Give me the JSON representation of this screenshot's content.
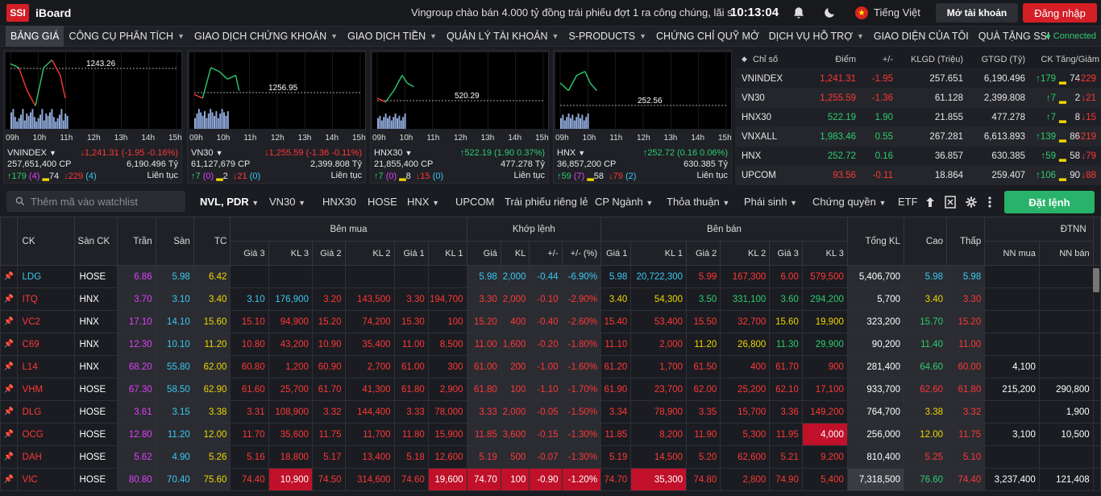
{
  "app": {
    "logo": "SSI",
    "name": "iBoard",
    "news": "Vingroup chào bán 4.000 tỷ đồng trái phiếu đợt 1 ra công chúng, lãi s",
    "time": "10:13:04",
    "language": "Tiếng Việt",
    "open_account": "Mở tài khoản",
    "login": "Đăng nhập",
    "flag_star": "★"
  },
  "menu": [
    {
      "label": "BẢNG GIÁ",
      "dropdown": false
    },
    {
      "label": "CÔNG CỤ PHÂN TÍCH",
      "dropdown": true
    },
    {
      "label": "GIAO DỊCH CHỨNG KHOÁN",
      "dropdown": true
    },
    {
      "label": "GIAO DỊCH TIỀN",
      "dropdown": true
    },
    {
      "label": "QUẢN LÝ TÀI KHOẢN",
      "dropdown": true
    },
    {
      "label": "S-PRODUCTS",
      "dropdown": true
    },
    {
      "label": "CHỨNG CHỈ QUỸ MỞ",
      "dropdown": false
    },
    {
      "label": "DỊCH VỤ HỖ TRỢ",
      "dropdown": true
    },
    {
      "label": "GIAO DIỆN CỦA TÔI",
      "dropdown": false
    },
    {
      "label": "QUÀ TẶNG SSI",
      "dropdown": false
    }
  ],
  "status": "● Connected",
  "charts": [
    {
      "name": "VNINDEX",
      "change": "↓1,241.31 (-1.95 -0.16%)",
      "dir": "dn",
      "vol": "257,651,400 CP",
      "val": "6,190.496 Tỷ",
      "up": "↑179",
      "upn": "(4)",
      "ref": "74",
      "down": "↓229",
      "downn": "(4)",
      "status": "Liên tục",
      "label": "1243.26",
      "hours": [
        "09h",
        "10h",
        "11h",
        "12h",
        "13h",
        "14h",
        "15h"
      ],
      "ref_level": 1243.26
    },
    {
      "name": "VN30",
      "change": "↓1,255.59 (-1.36 -0.11%)",
      "dir": "dn",
      "vol": "61,127,679 CP",
      "val": "2,399.808 Tỷ",
      "up": "↑7",
      "upn": "(0)",
      "ref": "2",
      "down": "↓21",
      "downn": "(0)",
      "status": "Liên tục",
      "label": "1256.95",
      "hours": [
        "09h",
        "10h",
        "11h",
        "12h",
        "13h",
        "14h",
        "15h"
      ],
      "ref_level": 1256.95
    },
    {
      "name": "HNX30",
      "change": "↑522.19 (1.90 0.37%)",
      "dir": "up",
      "vol": "21,855,400 CP",
      "val": "477.278 Tỷ",
      "up": "↑7",
      "upn": "(0)",
      "ref": "8",
      "down": "↓15",
      "downn": "(0)",
      "status": "Liên tục",
      "label": "520.29",
      "hours": [
        "09h",
        "10h",
        "11h",
        "12h",
        "13h",
        "14h",
        "15h"
      ],
      "ref_level": 520.29
    },
    {
      "name": "HNX",
      "change": "↑252.72 (0.16 0.06%)",
      "dir": "up",
      "vol": "36,857,200 CP",
      "val": "630.385 Tỷ",
      "up": "↑59",
      "upn": "(7)",
      "ref": "58",
      "down": "↓79",
      "downn": "(2)",
      "status": "Liên tục",
      "label": "252.56",
      "hours": [
        "09h",
        "10h",
        "11h",
        "12h",
        "13h",
        "14h",
        "15h"
      ],
      "ref_level": 252.56
    }
  ],
  "index_table": {
    "headers": [
      "Chỉ số",
      "Điểm",
      "+/-",
      "KLGD (Triệu)",
      "GTGD (Tỷ)",
      "CK Tăng/Giảm"
    ],
    "rows": [
      {
        "name": "VNINDEX",
        "point": "1,241.31",
        "chg": "-1.95",
        "klgd": "257.651",
        "gtgd": "6,190.496",
        "up": "↑179",
        "ref": "74",
        "down": "↓229",
        "dir": "dn"
      },
      {
        "name": "VN30",
        "point": "1,255.59",
        "chg": "-1.36",
        "klgd": "61.128",
        "gtgd": "2,399.808",
        "up": "↑7",
        "ref": "2",
        "down": "↓21",
        "dir": "dn"
      },
      {
        "name": "HNX30",
        "point": "522.19",
        "chg": "1.90",
        "klgd": "21.855",
        "gtgd": "477.278",
        "up": "↑7",
        "ref": "8",
        "down": "↓15",
        "dir": "up"
      },
      {
        "name": "VNXALL",
        "point": "1,983.46",
        "chg": "0.55",
        "klgd": "267.281",
        "gtgd": "6,613.893",
        "up": "↑139",
        "ref": "86",
        "down": "↓219",
        "dir": "up"
      },
      {
        "name": "HNX",
        "point": "252.72",
        "chg": "0.16",
        "klgd": "36.857",
        "gtgd": "630.385",
        "up": "↑59",
        "ref": "58",
        "down": "↓79",
        "dir": "up"
      },
      {
        "name": "UPCOM",
        "point": "93.56",
        "chg": "-0.11",
        "klgd": "18.864",
        "gtgd": "259.407",
        "up": "↑106",
        "ref": "90",
        "down": "↓88",
        "dir": "dn"
      }
    ]
  },
  "toolbar": {
    "search_placeholder": "Thêm mã vào watchlist",
    "tabs": [
      {
        "label": "NVL, PDR",
        "dropdown": true
      },
      {
        "label": "VN30",
        "dropdown": true
      },
      {
        "label": "HNX30",
        "dropdown": false
      },
      {
        "label": "HOSE",
        "dropdown": false
      },
      {
        "label": "HNX",
        "dropdown": true
      },
      {
        "label": "UPCOM",
        "dropdown": false
      },
      {
        "label": "Trái phiếu riêng lẻ",
        "dropdown": false
      },
      {
        "label": "CP Ngành",
        "dropdown": true
      },
      {
        "label": "Thỏa thuận",
        "dropdown": true
      },
      {
        "label": "Phái sinh",
        "dropdown": true
      },
      {
        "label": "Chứng quyền",
        "dropdown": true
      },
      {
        "label": "ETF",
        "dropdown": false
      }
    ],
    "order_button": "Đặt lệnh"
  },
  "board": {
    "group_headers": {
      "buy": "Bên mua",
      "match": "Khớp lệnh",
      "sell": "Bên bán",
      "foreign": "ĐTNN"
    },
    "headers": {
      "ck": "CK",
      "exchange": "Sàn CK",
      "ceil": "Trần",
      "floor": "Sàn",
      "ref": "TC",
      "b3": "Giá 3",
      "bv3": "KL 3",
      "b2": "Giá 2",
      "bv2": "KL 2",
      "b1": "Giá 1",
      "bv1": "KL 1",
      "mp": "Giá",
      "mv": "KL",
      "mc": "+/-",
      "mpct": "+/- (%)",
      "s1": "Giá 1",
      "sv1": "KL 1",
      "s2": "Giá 2",
      "sv2": "KL 2",
      "s3": "Giá 3",
      "sv3": "KL 3",
      "total": "Tổng KL",
      "high": "Cao",
      "low": "Thấp",
      "nnbuy": "NN mua",
      "nnsell": "NN bán"
    },
    "rows": [
      {
        "ck": "LDG",
        "ex": "HOSE",
        "c": "6.86",
        "f": "5.98",
        "r": "6.42",
        "cl": "fl",
        "b3": "",
        "bv3": "",
        "b2": "",
        "bv2": "",
        "b1": "",
        "bv1": "",
        "mp": "5.98",
        "mv": "2,000",
        "mc": "-0.44",
        "mpct": "-6.90%",
        "mcl": "fl",
        "s1": "5.98",
        "sv1": "20,722,300",
        "s1c": "fl",
        "s2": "5.99",
        "sv2": "167,300",
        "s2c": "dn",
        "s3": "6.00",
        "sv3": "579,500",
        "s3c": "dn",
        "tot": "5,406,700",
        "hi": "5.98",
        "hic": "fl",
        "lo": "5.98",
        "loc": "fl",
        "nb": "",
        "ns": ""
      },
      {
        "ck": "ITQ",
        "ex": "HNX",
        "c": "3.70",
        "f": "3.10",
        "r": "3.40",
        "cl": "dn",
        "b3": "3.10",
        "bv3": "176,900",
        "b3c": "fl",
        "b2": "3.20",
        "bv2": "143,500",
        "b2c": "dn",
        "b1": "3.30",
        "bv1": "194,700",
        "b1c": "dn",
        "mp": "3.30",
        "mv": "2,000",
        "mc": "-0.10",
        "mpct": "-2.90%",
        "mcl": "dn",
        "s1": "3.40",
        "sv1": "54,300",
        "s1c": "rf",
        "s2": "3.50",
        "sv2": "331,100",
        "s2c": "up",
        "s3": "3.60",
        "sv3": "294,200",
        "s3c": "up",
        "tot": "5,700",
        "hi": "3.40",
        "hic": "rf",
        "lo": "3.30",
        "loc": "dn",
        "nb": "",
        "ns": ""
      },
      {
        "ck": "VC2",
        "ex": "HNX",
        "c": "17.10",
        "f": "14.10",
        "r": "15.60",
        "cl": "dn",
        "b3": "15.10",
        "bv3": "94,900",
        "b3c": "dn",
        "b2": "15.20",
        "bv2": "74,200",
        "b2c": "dn",
        "b1": "15.30",
        "bv1": "100",
        "b1c": "dn",
        "mp": "15.20",
        "mv": "400",
        "mc": "-0.40",
        "mpct": "-2.60%",
        "mcl": "dn",
        "s1": "15.40",
        "sv1": "53,400",
        "s1c": "dn",
        "s2": "15.50",
        "sv2": "32,700",
        "s2c": "dn",
        "s3": "15.60",
        "sv3": "19,900",
        "s3c": "rf",
        "tot": "323,200",
        "hi": "15.70",
        "hic": "up",
        "lo": "15.20",
        "loc": "dn",
        "nb": "",
        "ns": ""
      },
      {
        "ck": "C69",
        "ex": "HNX",
        "c": "12.30",
        "f": "10.10",
        "r": "11.20",
        "cl": "dn",
        "b3": "10.80",
        "bv3": "43,200",
        "b3c": "dn",
        "b2": "10.90",
        "bv2": "35,400",
        "b2c": "dn",
        "b1": "11.00",
        "bv1": "8,500",
        "b1c": "dn",
        "mp": "11.00",
        "mv": "1,600",
        "mc": "-0.20",
        "mpct": "-1.80%",
        "mcl": "dn",
        "s1": "11.10",
        "sv1": "2,000",
        "s1c": "dn",
        "s2": "11.20",
        "sv2": "26,800",
        "s2c": "rf",
        "s3": "11.30",
        "sv3": "29,900",
        "s3c": "up",
        "tot": "90,200",
        "hi": "11.40",
        "hic": "up",
        "lo": "11.00",
        "loc": "dn",
        "nb": "",
        "ns": ""
      },
      {
        "ck": "L14",
        "ex": "HNX",
        "c": "68.20",
        "f": "55.80",
        "r": "62.00",
        "cl": "dn",
        "b3": "60.80",
        "bv3": "1,200",
        "b3c": "dn",
        "b2": "60.90",
        "bv2": "2,700",
        "b2c": "dn",
        "b1": "61.00",
        "bv1": "300",
        "b1c": "dn",
        "mp": "61.00",
        "mv": "200",
        "mc": "-1.00",
        "mpct": "-1.60%",
        "mcl": "dn",
        "s1": "61.20",
        "sv1": "1,700",
        "s1c": "dn",
        "s2": "61.50",
        "sv2": "400",
        "s2c": "dn",
        "s3": "61.70",
        "sv3": "900",
        "s3c": "dn",
        "tot": "281,400",
        "hi": "64.60",
        "hic": "up",
        "lo": "60.00",
        "loc": "dn",
        "nb": "4,100",
        "ns": ""
      },
      {
        "ck": "VHM",
        "ex": "HOSE",
        "c": "67.30",
        "f": "58.50",
        "r": "62.90",
        "cl": "dn",
        "b3": "61.60",
        "bv3": "25,700",
        "b3c": "dn",
        "b2": "61.70",
        "bv2": "41,300",
        "b2c": "dn",
        "b1": "61.80",
        "bv1": "2,900",
        "b1c": "dn",
        "mp": "61.80",
        "mv": "100",
        "mc": "-1.10",
        "mpct": "-1.70%",
        "mcl": "dn",
        "s1": "61.90",
        "sv1": "23,700",
        "s1c": "dn",
        "s2": "62.00",
        "sv2": "25,200",
        "s2c": "dn",
        "s3": "62.10",
        "sv3": "17,100",
        "s3c": "dn",
        "tot": "933,700",
        "hi": "62.60",
        "hic": "dn",
        "lo": "61.80",
        "loc": "dn",
        "nb": "215,200",
        "ns": "290,800"
      },
      {
        "ck": "DLG",
        "ex": "HOSE",
        "c": "3.61",
        "f": "3.15",
        "r": "3.38",
        "cl": "dn",
        "b3": "3.31",
        "bv3": "108,900",
        "b3c": "dn",
        "b2": "3.32",
        "bv2": "144,400",
        "b2c": "dn",
        "b1": "3.33",
        "bv1": "78,000",
        "b1c": "dn",
        "mp": "3.33",
        "mv": "2,000",
        "mc": "-0.05",
        "mpct": "-1.50%",
        "mcl": "dn",
        "s1": "3.34",
        "sv1": "78,900",
        "s1c": "dn",
        "s2": "3.35",
        "sv2": "15,700",
        "s2c": "dn",
        "s3": "3.36",
        "sv3": "149,200",
        "s3c": "dn",
        "tot": "764,700",
        "hi": "3.38",
        "hic": "rf",
        "lo": "3.32",
        "loc": "dn",
        "nb": "",
        "ns": "1,900"
      },
      {
        "ck": "OCG",
        "ex": "HOSE",
        "c": "12.80",
        "f": "11.20",
        "r": "12.00",
        "cl": "dn",
        "b3": "11.70",
        "bv3": "35,600",
        "b3c": "dn",
        "b2": "11.75",
        "bv2": "11,700",
        "b2c": "dn",
        "b1": "11.80",
        "bv1": "15,900",
        "b1c": "dn",
        "mp": "11.85",
        "mv": "3,600",
        "mc": "-0.15",
        "mpct": "-1.30%",
        "mcl": "dn",
        "s1": "11.85",
        "sv1": "8,200",
        "s1c": "dn",
        "s2": "11.90",
        "sv2": "5,300",
        "s2c": "dn",
        "s3": "11.95",
        "sv3": "4,000",
        "s3c": "dn",
        "tot": "256,000",
        "hi": "12.00",
        "hic": "rf",
        "lo": "11.75",
        "loc": "dn",
        "nb": "3,100",
        "ns": "10,500"
      },
      {
        "ck": "DAH",
        "ex": "HOSE",
        "c": "5.62",
        "f": "4.90",
        "r": "5.26",
        "cl": "dn",
        "b3": "5.16",
        "bv3": "18,800",
        "b3c": "dn",
        "b2": "5.17",
        "bv2": "13,400",
        "b2c": "dn",
        "b1": "5.18",
        "bv1": "12,600",
        "b1c": "dn",
        "mp": "5.19",
        "mv": "500",
        "mc": "-0.07",
        "mpct": "-1.30%",
        "mcl": "dn",
        "s1": "5.19",
        "sv1": "14,500",
        "s1c": "dn",
        "s2": "5.20",
        "sv2": "62,600",
        "s2c": "dn",
        "s3": "5.21",
        "sv3": "9,200",
        "s3c": "dn",
        "tot": "810,400",
        "hi": "5.25",
        "hic": "dn",
        "lo": "5.10",
        "loc": "dn",
        "nb": "",
        "ns": ""
      },
      {
        "ck": "VIC",
        "ex": "HOSE",
        "c": "80.80",
        "f": "70.40",
        "r": "75.60",
        "cl": "dn",
        "b3": "74.40",
        "bv3": "10,900",
        "b3c": "dn",
        "b2": "74.50",
        "bv2": "314,600",
        "b2c": "dn",
        "b1": "74.60",
        "bv1": "19,600",
        "b1c": "dn",
        "mp": "74.70",
        "mv": "100",
        "mc": "-0.90",
        "mpct": "-1.20%",
        "mcl": "dn",
        "s1": "74.70",
        "sv1": "35,300",
        "s1c": "dn",
        "s2": "74.80",
        "sv2": "2,800",
        "s2c": "dn",
        "s3": "74.90",
        "sv3": "5,400",
        "s3c": "dn",
        "tot": "7,318,500",
        "hi": "76.60",
        "hic": "up",
        "lo": "74.40",
        "loc": "dn",
        "nb": "3,237,400",
        "ns": "121,408"
      }
    ]
  },
  "colors": {
    "up": "#2ecc71",
    "down": "#ff3737",
    "ref": "#f0d600",
    "ceil": "#e040fb",
    "floor": "#3ac8f0",
    "accent": "#d51f27",
    "order": "#29b36a"
  }
}
